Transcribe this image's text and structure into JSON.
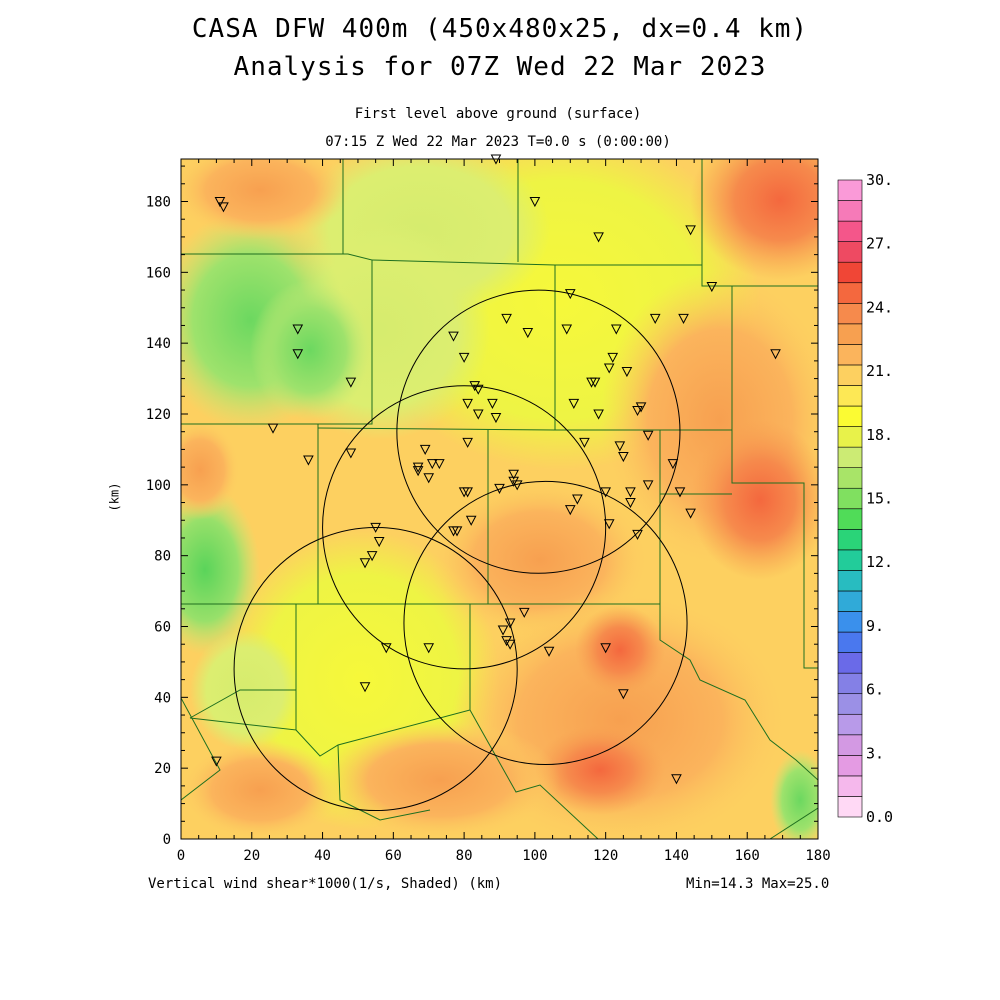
{
  "title": {
    "line1": "CASA DFW 400m (450x480x25, dx=0.4 km)",
    "line2": "Analysis for 07Z Wed 22 Mar 2023"
  },
  "subtitle": {
    "level": "First level above ground (surface)",
    "time": "07:15 Z Wed 22 Mar 2023    T=0.0 s (0:00:00)"
  },
  "axes": {
    "x_label": "(km)",
    "y_label": "(km)",
    "x_ticks": [
      "0",
      "20",
      "40",
      "60",
      "80",
      "100",
      "120",
      "140",
      "160",
      "180"
    ],
    "y_ticks": [
      "0",
      "20",
      "40",
      "60",
      "80",
      "100",
      "120",
      "140",
      "160",
      "180"
    ],
    "xlim": [
      0,
      180
    ],
    "ylim": [
      0,
      192
    ]
  },
  "caption": {
    "field": "Vertical wind shear*1000(1/s, Shaded)",
    "units": "(km)",
    "minmax": "Min=14.3 Max=25.0"
  },
  "colorbar": {
    "labels": [
      "30.",
      "27.",
      "24.",
      "21.",
      "18.",
      "15.",
      "12.",
      "9.",
      "6.",
      "3.",
      "0.0"
    ],
    "colors": [
      "#ffd9f5",
      "#f5b8ec",
      "#e49be3",
      "#d399e3",
      "#b89ae9",
      "#9b90e6",
      "#8480e6",
      "#6a6ae8",
      "#4a78ee",
      "#3a90ec",
      "#30aad8",
      "#28bcc0",
      "#22cc9a",
      "#2ad478",
      "#50dc58",
      "#80e060",
      "#a8e468",
      "#cceb74",
      "#e8f24a",
      "#fbfb33",
      "#fde855",
      "#fdd060",
      "#fbb45c",
      "#f7a050",
      "#f68a4c",
      "#f4683e",
      "#f04636",
      "#ee4a62",
      "#f4568a",
      "#f67ab8",
      "#fa9ad8"
    ]
  },
  "stations": [
    [
      11,
      180
    ],
    [
      12,
      178.5
    ],
    [
      100,
      180
    ],
    [
      118,
      170
    ],
    [
      144,
      172
    ],
    [
      89,
      192
    ],
    [
      150,
      156
    ],
    [
      110,
      154
    ],
    [
      92,
      147
    ],
    [
      98,
      143
    ],
    [
      109,
      144
    ],
    [
      123,
      144
    ],
    [
      134,
      147
    ],
    [
      142,
      147
    ],
    [
      33,
      144
    ],
    [
      33,
      137
    ],
    [
      48,
      129
    ],
    [
      77,
      142
    ],
    [
      80,
      136
    ],
    [
      83,
      128
    ],
    [
      84,
      127
    ],
    [
      122,
      136
    ],
    [
      121,
      133
    ],
    [
      126,
      132
    ],
    [
      117,
      129
    ],
    [
      116,
      129
    ],
    [
      88,
      123
    ],
    [
      81,
      123
    ],
    [
      84,
      120
    ],
    [
      89,
      119
    ],
    [
      111,
      123
    ],
    [
      118,
      120
    ],
    [
      129,
      121
    ],
    [
      130,
      122
    ],
    [
      132,
      114
    ],
    [
      26,
      116
    ],
    [
      36,
      107
    ],
    [
      48,
      109
    ],
    [
      69,
      110
    ],
    [
      81,
      112
    ],
    [
      114,
      112
    ],
    [
      124,
      111
    ],
    [
      125,
      108
    ],
    [
      139,
      106
    ],
    [
      67,
      105
    ],
    [
      71,
      106
    ],
    [
      73,
      106
    ],
    [
      70,
      102
    ],
    [
      67,
      104
    ],
    [
      94,
      103
    ],
    [
      94,
      101
    ],
    [
      95,
      100
    ],
    [
      80,
      98
    ],
    [
      81,
      98
    ],
    [
      90,
      99
    ],
    [
      141,
      98
    ],
    [
      120,
      98
    ],
    [
      112,
      96
    ],
    [
      127,
      98
    ],
    [
      127,
      95
    ],
    [
      132,
      100
    ],
    [
      144,
      92
    ],
    [
      110,
      93
    ],
    [
      121,
      89
    ],
    [
      129,
      86
    ],
    [
      78,
      87
    ],
    [
      77,
      87
    ],
    [
      82,
      90
    ],
    [
      55,
      88
    ],
    [
      56,
      84
    ],
    [
      54,
      80
    ],
    [
      52,
      78
    ],
    [
      97,
      64
    ],
    [
      93,
      61
    ],
    [
      91,
      59
    ],
    [
      92,
      56
    ],
    [
      93,
      55
    ],
    [
      58,
      54
    ],
    [
      70,
      54
    ],
    [
      104,
      53
    ],
    [
      120,
      54
    ],
    [
      52,
      43
    ],
    [
      125,
      41
    ],
    [
      10,
      22
    ],
    [
      140,
      17
    ],
    [
      168,
      137
    ]
  ],
  "radars": [
    {
      "cx": 101,
      "cy": 115,
      "r": 40
    },
    {
      "cx": 80,
      "cy": 88,
      "r": 40
    },
    {
      "cx": 103,
      "cy": 61,
      "r": 40
    },
    {
      "cx": 55,
      "cy": 48,
      "r": 40
    }
  ]
}
